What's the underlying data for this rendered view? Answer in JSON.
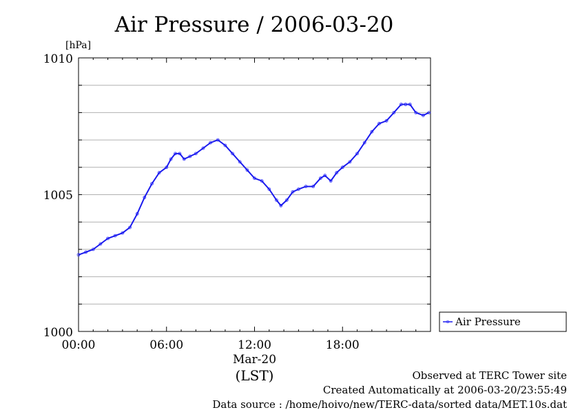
{
  "chart_data": {
    "type": "line",
    "title": "Air Pressure / 2006-03-20",
    "ylabel": "[hPa]",
    "xlabel": "(LST)",
    "date_label": "Mar-20",
    "ylim": [
      1000,
      1010
    ],
    "xlim": [
      "00:00",
      "24:00"
    ],
    "y_ticks": [
      "1000",
      "1005",
      "1010"
    ],
    "x_ticks": [
      "00:00",
      "06:00",
      "12:00",
      "18:00"
    ],
    "grid": true,
    "legend_position": "right",
    "series": [
      {
        "name": "Air Pressure",
        "color": "#3333ff",
        "marker": "open-circle",
        "x_hours": [
          0.0,
          0.5,
          1.0,
          1.5,
          2.0,
          2.5,
          3.0,
          3.5,
          4.0,
          4.5,
          5.0,
          5.5,
          6.0,
          6.3,
          6.6,
          6.9,
          7.2,
          7.6,
          8.0,
          8.5,
          9.0,
          9.5,
          10.0,
          10.5,
          11.0,
          11.5,
          12.0,
          12.5,
          13.0,
          13.5,
          13.8,
          14.2,
          14.6,
          15.0,
          15.5,
          16.0,
          16.5,
          16.8,
          17.2,
          17.6,
          18.0,
          18.5,
          19.0,
          19.5,
          20.0,
          20.5,
          21.0,
          21.5,
          22.0,
          22.3,
          22.6,
          23.0,
          23.5,
          23.9
        ],
        "values": [
          1002.8,
          1002.9,
          1003.0,
          1003.2,
          1003.4,
          1003.5,
          1003.6,
          1003.8,
          1004.3,
          1004.9,
          1005.4,
          1005.8,
          1006.0,
          1006.3,
          1006.5,
          1006.5,
          1006.3,
          1006.4,
          1006.5,
          1006.7,
          1006.9,
          1007.0,
          1006.8,
          1006.5,
          1006.2,
          1005.9,
          1005.6,
          1005.5,
          1005.2,
          1004.8,
          1004.6,
          1004.8,
          1005.1,
          1005.2,
          1005.3,
          1005.3,
          1005.6,
          1005.7,
          1005.5,
          1005.8,
          1006.0,
          1006.2,
          1006.5,
          1006.9,
          1007.3,
          1007.6,
          1007.7,
          1008.0,
          1008.3,
          1008.3,
          1008.3,
          1008.0,
          1007.9,
          1008.0
        ]
      }
    ]
  },
  "footer": {
    "line1": "Observed at TERC Tower site",
    "line2": "Created Automatically at 2006-03-20/23:55:49",
    "line3": "Data source : /home/hoivo/new/TERC-data/sorted  data/MET.10s.dat"
  }
}
